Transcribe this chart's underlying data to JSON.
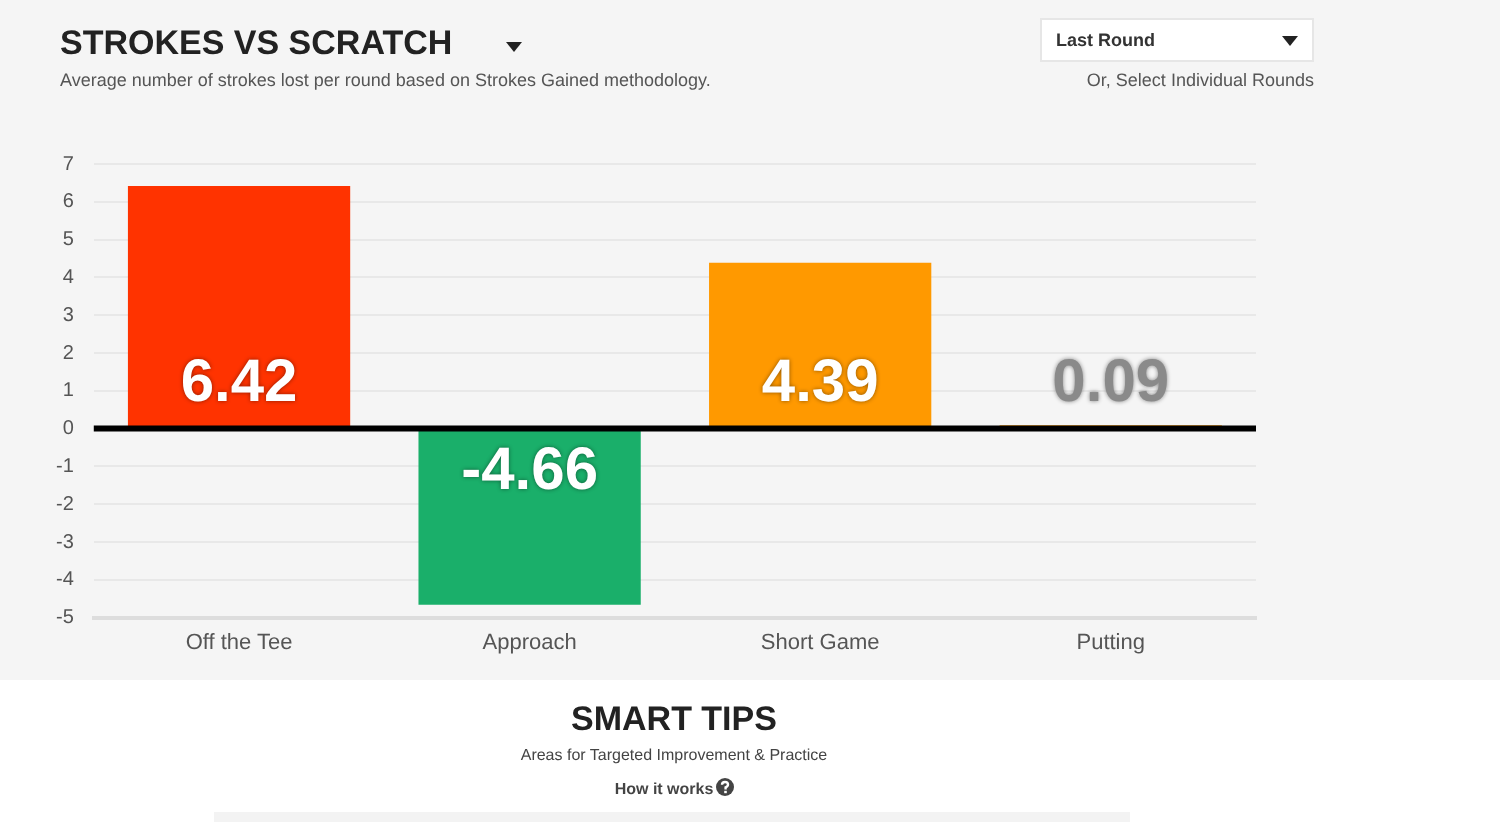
{
  "chart_data": {
    "type": "bar",
    "title": "STROKES VS SCRATCH",
    "subtitle": "Average number of strokes lost per round based on Strokes Gained methodology.",
    "categories": [
      "Off the Tee",
      "Approach",
      "Short Game",
      "Putting"
    ],
    "values": [
      6.42,
      -4.66,
      4.39,
      0.09
    ],
    "colors": [
      "#ff3300",
      "#1aaf6a",
      "#ff9900",
      "#ff9900"
    ],
    "ylim": [
      -5,
      7
    ],
    "yticks": [
      -5,
      -4,
      -3,
      -2,
      -1,
      0,
      1,
      2,
      3,
      4,
      5,
      6,
      7
    ],
    "grid": "y",
    "data_labels": true,
    "legend": false,
    "ref_lines": [
      {
        "axis": "y",
        "value": 0,
        "color": "#000000"
      }
    ],
    "annotations": [
      "Last Round",
      "Or, Select Individual Rounds",
      "SMART TIPS",
      "Areas for Targeted Improvement & Practice",
      "How it works"
    ]
  }
}
